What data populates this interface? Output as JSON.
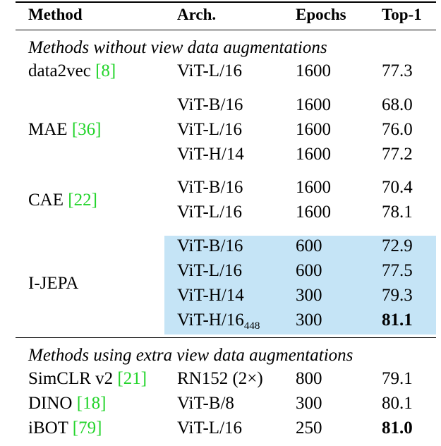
{
  "header": {
    "method": "Method",
    "arch": "Arch.",
    "epochs": "Epochs",
    "top1": "Top-1"
  },
  "sections": [
    {
      "title": "Methods without view data augmentations",
      "groups": [
        {
          "method": "data2vec",
          "cite": "8",
          "rows": [
            {
              "arch": "ViT-L/16",
              "epochs": "1600",
              "top1": "77.3"
            }
          ]
        },
        {
          "method": "MAE",
          "cite": "36",
          "rows": [
            {
              "arch": "ViT-B/16",
              "epochs": "1600",
              "top1": "68.0"
            },
            {
              "arch": "ViT-L/16",
              "epochs": "1600",
              "top1": "76.0"
            },
            {
              "arch": "ViT-H/14",
              "epochs": "1600",
              "top1": "77.2"
            }
          ]
        },
        {
          "method": "CAE",
          "cite": "22",
          "rows": [
            {
              "arch": "ViT-B/16",
              "epochs": "1600",
              "top1": "70.4"
            },
            {
              "arch": "ViT-L/16",
              "epochs": "1600",
              "top1": "78.1"
            }
          ]
        },
        {
          "method": "I-JEPA",
          "cite": "",
          "highlight": true,
          "rows": [
            {
              "arch": "ViT-B/16",
              "epochs": "600",
              "top1": "72.9"
            },
            {
              "arch": "ViT-L/16",
              "epochs": "600",
              "top1": "77.5"
            },
            {
              "arch": "ViT-H/14",
              "epochs": "300",
              "top1": "79.3"
            },
            {
              "arch": "ViT-H/16",
              "arch_sub": "448",
              "epochs": "300",
              "top1": "81.1",
              "bold": true
            }
          ]
        }
      ]
    },
    {
      "title": "Methods using extra view data augmentations",
      "groups": [
        {
          "method": "SimCLR v2",
          "cite": "21",
          "rows": [
            {
              "arch": "RN152 (2×)",
              "epochs": "800",
              "top1": "79.1"
            }
          ]
        },
        {
          "method": "DINO",
          "cite": "18",
          "rows": [
            {
              "arch": "ViT-B/8",
              "epochs": "300",
              "top1": "80.1"
            }
          ]
        },
        {
          "method": "iBOT",
          "cite": "79",
          "rows": [
            {
              "arch": "ViT-L/16",
              "epochs": "250",
              "top1": "81.0",
              "bold": true
            }
          ]
        }
      ]
    }
  ]
}
